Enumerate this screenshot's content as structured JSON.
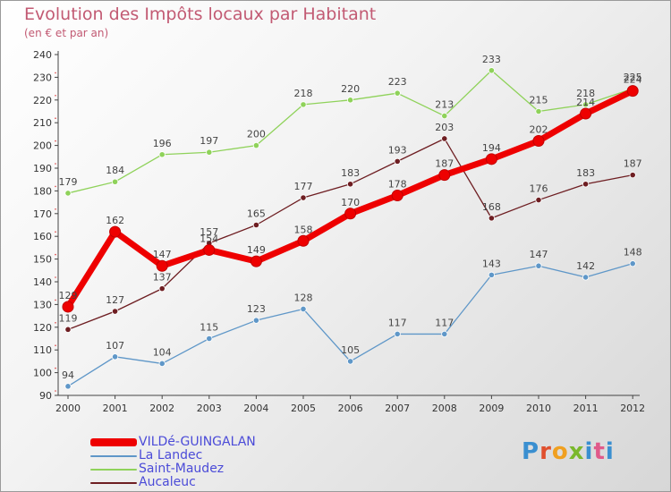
{
  "title": "Evolution des Impôts locaux par Habitant",
  "subtitle": "(en € et par an)",
  "logo": "Proxiti",
  "chart_data": {
    "type": "line",
    "title": "Evolution des Impôts locaux par Habitant",
    "subtitle": "(en € et par an)",
    "xlabel": "",
    "ylabel": "",
    "ylim": [
      90,
      240
    ],
    "yticks": [
      90,
      100,
      110,
      120,
      130,
      140,
      150,
      160,
      170,
      180,
      190,
      200,
      210,
      220,
      230,
      240
    ],
    "categories": [
      "2000",
      "2001",
      "2002",
      "2003",
      "2004",
      "2005",
      "2006",
      "2007",
      "2008",
      "2009",
      "2010",
      "2011",
      "2012"
    ],
    "grid": false,
    "legend_position": "bottom-left",
    "series": [
      {
        "name": "VILDé-GUINGALAN",
        "color": "#ee0000",
        "values": [
          129,
          162,
          147,
          154,
          149,
          158,
          170,
          178,
          187,
          194,
          202,
          214,
          224
        ]
      },
      {
        "name": "La Landec",
        "color": "#5f97c8",
        "values": [
          94,
          107,
          104,
          115,
          123,
          128,
          105,
          117,
          117,
          143,
          147,
          142,
          148
        ]
      },
      {
        "name": "Saint-Maudez",
        "color": "#8fd25a",
        "values": [
          179,
          184,
          196,
          197,
          200,
          218,
          220,
          223,
          213,
          233,
          215,
          218,
          225
        ]
      },
      {
        "name": "Aucaleuc",
        "color": "#6e1e22",
        "values": [
          119,
          127,
          137,
          157,
          165,
          177,
          183,
          193,
          203,
          168,
          176,
          183,
          187
        ]
      }
    ]
  }
}
